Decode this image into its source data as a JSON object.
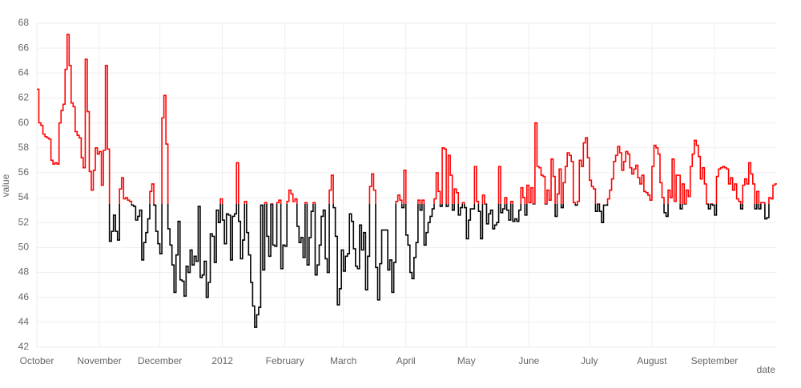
{
  "chart_data": {
    "type": "step-line",
    "x_label": "date",
    "y_label": "value",
    "xlim": [
      0,
      367
    ],
    "xticks": [
      {
        "value": 0,
        "label": "October"
      },
      {
        "value": 31,
        "label": "November"
      },
      {
        "value": 61,
        "label": "December"
      },
      {
        "value": 92,
        "label": "2012"
      },
      {
        "value": 123,
        "label": "February"
      },
      {
        "value": 152,
        "label": "March"
      },
      {
        "value": 183,
        "label": "April"
      },
      {
        "value": 213,
        "label": "May"
      },
      {
        "value": 244,
        "label": "June"
      },
      {
        "value": 274,
        "label": "July"
      },
      {
        "value": 305,
        "label": "August"
      },
      {
        "value": 336,
        "label": "September"
      }
    ],
    "ylim": [
      42,
      68
    ],
    "yticks": [
      42,
      44,
      46,
      48,
      50,
      52,
      54,
      56,
      58,
      60,
      62,
      64,
      66,
      68
    ],
    "grid": true,
    "threshold": 53.5,
    "color_above": "#ff0000",
    "color_below": "#000000",
    "values": [
      62.7,
      60,
      59.8,
      59.1,
      58.9,
      58.8,
      58.7,
      57,
      56.7,
      56.8,
      56.7,
      60,
      61,
      61.5,
      64.3,
      67.1,
      64.6,
      61.6,
      61.3,
      59.3,
      59,
      58.8,
      57.2,
      56.4,
      65.1,
      60.9,
      56.1,
      54.6,
      56.2,
      58,
      57.5,
      57.7,
      55,
      57.8,
      64.6,
      57.9,
      50.5,
      51.3,
      52.6,
      51.3,
      50.6,
      54.7,
      55.6,
      53.9,
      54,
      53.8,
      53.7,
      53.4,
      53.3,
      52.2,
      52.5,
      53,
      49,
      50.4,
      51.2,
      52.3,
      54.5,
      55.1,
      53.4,
      51.3,
      50.3,
      49.5,
      60.4,
      62.2,
      58.3,
      51.5,
      50.2,
      48.6,
      46.4,
      49.4,
      52.1,
      47.4,
      47.3,
      46.1,
      48.5,
      48,
      49.8,
      48.6,
      49.3,
      48.9,
      53.3,
      47.6,
      47.8,
      48.9,
      46,
      47.2,
      51.1,
      50.9,
      48.8,
      53,
      52,
      53.9,
      52.2,
      50.3,
      52.7,
      52.6,
      49,
      52.5,
      52.7,
      56.8,
      52.1,
      49.1,
      50.6,
      53.7,
      51.2,
      49.4,
      47.2,
      45.3,
      43.6,
      44.6,
      45.2,
      53.4,
      48.2,
      53.6,
      50.9,
      49.3,
      53.5,
      50.2,
      50.1,
      53.6,
      53.8,
      48.3,
      50.2,
      50.1,
      53.7,
      54.6,
      54.3,
      53.7,
      53.9,
      51.7,
      50.4,
      50.8,
      49.2,
      53.6,
      48.6,
      50.8,
      52.9,
      53.6,
      47.8,
      48.6,
      50.2,
      52.5,
      53,
      49.1,
      48,
      54.6,
      55.8,
      53.2,
      50.9,
      45.4,
      46.7,
      49.8,
      48.1,
      49.3,
      49.5,
      52.7,
      52.1,
      49.9,
      48.5,
      48.3,
      51.8,
      49.8,
      51.2,
      46.6,
      49.3,
      54.9,
      55.9,
      54.6,
      48.4,
      45.8,
      48.7,
      51.4,
      51.4,
      51.4,
      48.2,
      49,
      46.4,
      48.8,
      53.7,
      54.2,
      53.8,
      53.2,
      56.2,
      51,
      50.2,
      48,
      47.5,
      49.2,
      50.4,
      53.8,
      53,
      53.8,
      50.2,
      51.2,
      52,
      52.5,
      53.1,
      53.9,
      56,
      54.5,
      53.3,
      58,
      57.9,
      53.3,
      57.4,
      55.8,
      53,
      54.7,
      54.4,
      52.6,
      53.2,
      53.6,
      53.2,
      50.7,
      52.2,
      53.1,
      53.1,
      56.5,
      53.7,
      52.9,
      50.7,
      54.2,
      53.5,
      51.9,
      52.7,
      53,
      51.5,
      51.8,
      52,
      56.5,
      52.8,
      53.1,
      54,
      53,
      52.2,
      53.7,
      52.1,
      52.3,
      52.1,
      53,
      54.8,
      54,
      52.6,
      55,
      53.6,
      54.8,
      53.5,
      60,
      56.5,
      56.4,
      55.8,
      55.7,
      53.5,
      54.6,
      53.8,
      57.1,
      55.7,
      52.5,
      54.3,
      56.3,
      53.2,
      55.2,
      56.5,
      57.6,
      57.4,
      56.9,
      53.6,
      53.4,
      53.7,
      57,
      56.5,
      58.4,
      58.8,
      57.2,
      55.4,
      54.9,
      54.7,
      52.9,
      53.5,
      52.9,
      52,
      53.4,
      53.4,
      53.9,
      54.6,
      55.5,
      56.9,
      57.4,
      58.1,
      57.6,
      56.2,
      56.9,
      57.7,
      57.5,
      56.4,
      55.9,
      56.3,
      56.6,
      55.6,
      55.1,
      55.8,
      54.5,
      54.4,
      54.2,
      53.8,
      56.5,
      58.2,
      58,
      57.5,
      55.2,
      54,
      52.8,
      52.5,
      54.6,
      54,
      57.1,
      53.7,
      55.8,
      55.8,
      53.1,
      55.1,
      53.5,
      54.6,
      54.1,
      56.5,
      57.5,
      58.6,
      58.2,
      57.3,
      55.5,
      56.4,
      55.1,
      53.5,
      53.1,
      53.5,
      53.4,
      52.6,
      55.7,
      56.3,
      56.4,
      56.5,
      56.4,
      56.3,
      55.1,
      55.6,
      54.6,
      55.1,
      53.9,
      53.7,
      53.1,
      55,
      55.5,
      55.1,
      56.8,
      55.9,
      55.1,
      53.1,
      54.5,
      53.1,
      53.6,
      53.6,
      52.3,
      52.4,
      54,
      53.9,
      55,
      55.1
    ]
  }
}
